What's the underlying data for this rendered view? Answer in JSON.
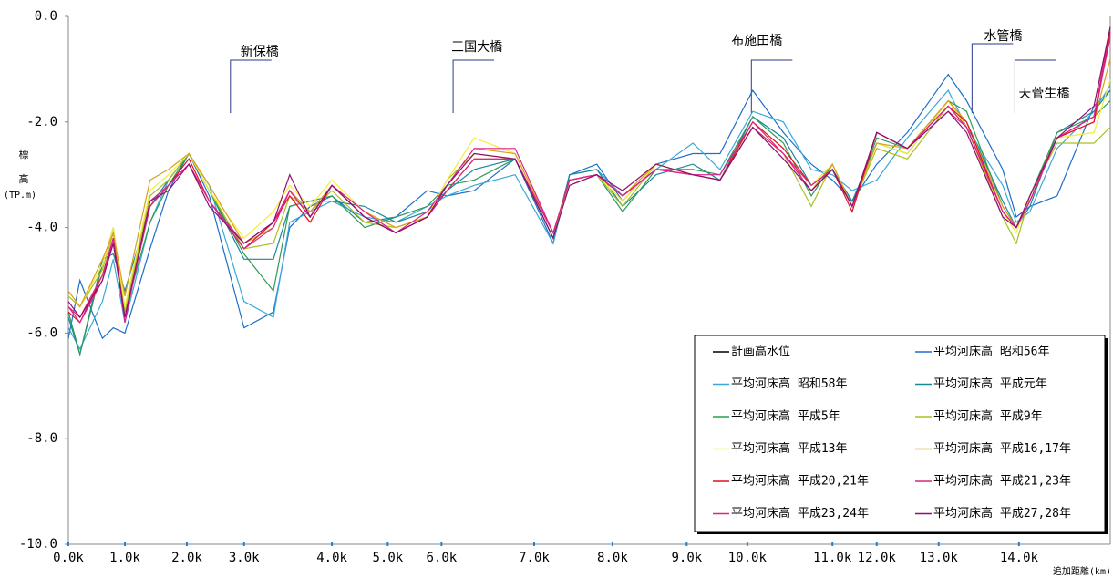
{
  "chart_data": {
    "type": "line",
    "y_label": [
      "標",
      "高",
      "(TP.m)"
    ],
    "x_label": "追加距離(km)",
    "x": [
      0,
      0.17,
      0.5,
      0.66,
      0.83,
      1.2,
      1.47,
      1.77,
      2.07,
      2.58,
      3.01,
      3.25,
      3.55,
      3.87,
      4.35,
      4.81,
      5.27,
      5.56,
      5.96,
      6.56,
      7.12,
      7.36,
      7.76,
      8.14,
      8.63,
      9.17,
      9.57,
      10.05,
      10.5,
      10.91,
      11.22,
      11.51,
      11.87,
      12.32,
      12.92,
      13.19,
      13.72,
      13.92,
      14.12,
      14.52,
      15.06,
      15.3
    ],
    "xlim": [
      0,
      15.3
    ],
    "xticks": [
      {
        "value": 0,
        "label": "0.0k"
      },
      {
        "value": 0.83,
        "label": "1.0k"
      },
      {
        "value": 1.74,
        "label": "2.0k"
      },
      {
        "value": 2.58,
        "label": "3.0k"
      },
      {
        "value": 3.87,
        "label": "4.0k"
      },
      {
        "value": 4.69,
        "label": "5.0k"
      },
      {
        "value": 5.48,
        "label": "6.0k"
      },
      {
        "value": 6.84,
        "label": "7.0k"
      },
      {
        "value": 7.99,
        "label": "8.0k"
      },
      {
        "value": 9.08,
        "label": "9.0k"
      },
      {
        "value": 9.97,
        "label": "10.0k"
      },
      {
        "value": 11.22,
        "label": "11.0k"
      },
      {
        "value": 11.87,
        "label": "12.0k"
      },
      {
        "value": 12.78,
        "label": "13.0k"
      },
      {
        "value": 13.96,
        "label": "14.0k"
      }
    ],
    "ylim": [
      -10,
      0
    ],
    "yticks": [
      {
        "value": 0,
        "label": "0.0"
      },
      {
        "value": -2,
        "label": "-2.0"
      },
      {
        "value": -4,
        "label": "-4.0"
      },
      {
        "value": -6,
        "label": "-6.0"
      },
      {
        "value": -8,
        "label": "-8.0"
      },
      {
        "value": -10,
        "label": "-10.0"
      }
    ],
    "annotations": [
      {
        "text": "新保橋",
        "x": 2.38
      },
      {
        "text": "三国大橋",
        "x": 5.65
      },
      {
        "text": "布施田橋",
        "x": 10.03
      },
      {
        "text": "水管橋",
        "x": 13.27
      },
      {
        "text": "天菅生橋",
        "x": 13.9
      }
    ],
    "series": [
      {
        "name": "計画高水位",
        "color": "#000000",
        "values": [
          null,
          null,
          null,
          null,
          null,
          null,
          null,
          null,
          null,
          null,
          null,
          null,
          null,
          null,
          null,
          null,
          null,
          null,
          null,
          null,
          null,
          null,
          null,
          null,
          null,
          null,
          null,
          null,
          null,
          null,
          null,
          null,
          null,
          null,
          null,
          null,
          null,
          null,
          null,
          null,
          null,
          null
        ]
      },
      {
        "name": "平均河床高 昭和56年",
        "color": "#1e6fc8",
        "values": [
          -6.1,
          -5.0,
          -6.1,
          -5.9,
          -6.0,
          -4.4,
          -3.3,
          -2.6,
          -3.4,
          -5.9,
          -5.6,
          -4.0,
          -3.6,
          -3.4,
          -3.9,
          -3.8,
          -3.3,
          -3.4,
          -3.3,
          -2.7,
          -4.3,
          -3.0,
          -2.8,
          -3.5,
          -2.8,
          -2.6,
          -2.6,
          -1.4,
          -2.2,
          -2.8,
          -3.1,
          -3.5,
          -2.8,
          -2.2,
          -1.1,
          -1.6,
          -2.9,
          -3.8,
          -3.6,
          -3.4,
          -1.7,
          -1.4
        ]
      },
      {
        "name": "平均河床高 昭和58年",
        "color": "#3aa8d8",
        "values": [
          -5.9,
          -6.3,
          -5.4,
          -4.6,
          -5.8,
          -3.9,
          -3.1,
          -2.6,
          -3.2,
          -5.4,
          -5.7,
          -3.9,
          -3.7,
          -3.5,
          -3.8,
          -3.9,
          -3.6,
          -3.4,
          -3.2,
          -3.0,
          -4.3,
          -3.0,
          -2.9,
          -3.4,
          -2.9,
          -2.4,
          -2.9,
          -1.8,
          -2.0,
          -2.9,
          -3.0,
          -3.3,
          -3.1,
          -2.3,
          -1.4,
          -2.1,
          -3.2,
          -3.9,
          -3.7,
          -2.5,
          -1.8,
          -1.3
        ]
      },
      {
        "name": "平均河床高 平成元年",
        "color": "#17879a",
        "values": [
          -5.7,
          -6.4,
          -4.6,
          -4.5,
          -5.2,
          -3.6,
          -3.1,
          -2.6,
          -3.3,
          -4.6,
          -4.6,
          -3.6,
          -3.5,
          -3.5,
          -3.6,
          -3.9,
          -3.7,
          -3.3,
          -2.9,
          -2.7,
          -4.2,
          -3.0,
          -2.9,
          -3.6,
          -3.0,
          -2.8,
          -3.1,
          -1.9,
          -2.3,
          -3.2,
          -2.9,
          -3.5,
          -2.4,
          -2.6,
          -1.6,
          -2.0,
          -3.5,
          -4.0,
          -3.6,
          -2.2,
          -1.8,
          -1.4
        ]
      },
      {
        "name": "平均河床高 平成5年",
        "color": "#2e9b55",
        "values": [
          -5.6,
          -6.4,
          -4.7,
          -4.0,
          -5.6,
          -3.9,
          -3.2,
          -2.6,
          -3.3,
          -4.5,
          -5.2,
          -3.6,
          -3.5,
          -3.4,
          -4.0,
          -3.8,
          -3.6,
          -3.2,
          -3.1,
          -2.7,
          -4.2,
          -3.1,
          -3.0,
          -3.7,
          -2.9,
          -2.9,
          -3.0,
          -1.9,
          -2.4,
          -3.4,
          -2.8,
          -3.6,
          -2.3,
          -2.5,
          -1.6,
          -1.8,
          -3.6,
          -4.0,
          -3.4,
          -2.2,
          -1.9,
          -1.6
        ]
      },
      {
        "name": "平均河床高 平成9年",
        "color": "#a8c020",
        "values": [
          -5.3,
          -5.5,
          -4.8,
          -4.1,
          -5.6,
          -3.4,
          -3.1,
          -2.6,
          -3.3,
          -4.4,
          -4.3,
          -3.4,
          -3.7,
          -3.3,
          -3.9,
          -4.0,
          -3.8,
          -3.1,
          -2.6,
          -2.7,
          -4.1,
          -3.2,
          -3.0,
          -3.6,
          -2.8,
          -3.0,
          -3.1,
          -2.1,
          -2.6,
          -3.6,
          -2.8,
          -3.6,
          -2.5,
          -2.7,
          -1.7,
          -2.1,
          -3.8,
          -4.3,
          -3.4,
          -2.4,
          -2.4,
          -2.1
        ]
      },
      {
        "name": "平均河床高 平成13年",
        "color": "#f2ee3a",
        "values": [
          -5.2,
          -5.5,
          -4.7,
          -4.0,
          -5.5,
          -3.3,
          -3.0,
          -2.6,
          -3.3,
          -4.2,
          -3.7,
          -3.2,
          -3.6,
          -3.1,
          -3.7,
          -4.0,
          -3.8,
          -3.1,
          -2.3,
          -2.6,
          -4.1,
          -3.1,
          -3.0,
          -3.5,
          -2.8,
          -3.0,
          -3.1,
          -2.0,
          -2.5,
          -3.2,
          -2.8,
          -3.6,
          -2.4,
          -2.6,
          -1.6,
          -2.1,
          -3.7,
          -4.1,
          -3.4,
          -2.3,
          -2.2,
          -1.2
        ]
      },
      {
        "name": "平均河床高 平成16,17年",
        "color": "#d8a020",
        "values": [
          -5.2,
          -5.5,
          -4.6,
          -4.1,
          -5.3,
          -3.1,
          -2.9,
          -2.6,
          -3.2,
          -4.3,
          -4.0,
          -3.3,
          -3.7,
          -3.2,
          -3.7,
          -4.0,
          -3.8,
          -3.2,
          -2.5,
          -2.6,
          -4.1,
          -3.1,
          -3.0,
          -3.4,
          -2.8,
          -3.0,
          -3.1,
          -2.1,
          -2.6,
          -3.3,
          -2.8,
          -3.6,
          -2.4,
          -2.5,
          -1.6,
          -2.0,
          -3.6,
          -4.0,
          -3.4,
          -2.3,
          -2.0,
          -0.8
        ]
      },
      {
        "name": "平均河床高 平成20,21年",
        "color": "#e01020",
        "values": [
          -5.6,
          -5.8,
          -4.9,
          -4.2,
          -5.7,
          -3.6,
          -3.2,
          -2.7,
          -3.5,
          -4.4,
          -3.9,
          -3.4,
          -3.9,
          -3.2,
          -3.8,
          -4.1,
          -3.8,
          -3.3,
          -2.7,
          -2.7,
          -4.1,
          -3.1,
          -3.0,
          -3.4,
          -2.9,
          -3.0,
          -3.1,
          -2.0,
          -2.5,
          -3.2,
          -2.9,
          -3.7,
          -2.2,
          -2.5,
          -1.7,
          -2.0,
          -3.7,
          -4.0,
          -3.5,
          -2.3,
          -2.0,
          -0.3
        ]
      },
      {
        "name": "平均河床高 平成21,23年",
        "color": "#d52a7a",
        "values": [
          -5.5,
          -5.7,
          -4.9,
          -4.3,
          -5.7,
          -3.6,
          -3.2,
          -2.8,
          -3.5,
          -4.4,
          -4.0,
          -3.3,
          -3.8,
          -3.2,
          -3.8,
          -4.1,
          -3.8,
          -3.3,
          -2.7,
          -2.7,
          -4.1,
          -3.1,
          -3.0,
          -3.4,
          -2.9,
          -3.0,
          -3.1,
          -2.1,
          -2.6,
          -3.2,
          -2.9,
          -3.6,
          -2.2,
          -2.5,
          -1.8,
          -2.1,
          -3.7,
          -4.0,
          -3.5,
          -2.3,
          -1.9,
          -0.4
        ]
      },
      {
        "name": "平均河床高 平成23,24年",
        "color": "#e0208e",
        "values": [
          -5.5,
          -5.8,
          -5.0,
          -4.2,
          -5.8,
          -3.5,
          -3.2,
          -2.8,
          -3.5,
          -4.3,
          -3.9,
          -3.3,
          -3.8,
          -3.2,
          -3.7,
          -4.1,
          -3.7,
          -3.2,
          -2.5,
          -2.5,
          -4.1,
          -3.1,
          -3.0,
          -3.4,
          -2.9,
          -3.0,
          -3.0,
          -2.0,
          -2.6,
          -3.3,
          -2.9,
          -3.6,
          -2.2,
          -2.5,
          -1.7,
          -2.1,
          -3.7,
          -4.0,
          -3.5,
          -2.3,
          -1.9,
          -0.2
        ]
      },
      {
        "name": "平均河床高 平成27,28年",
        "color": "#8c1070",
        "values": [
          -5.4,
          -5.7,
          -5.0,
          -4.3,
          -5.7,
          -3.5,
          -3.3,
          -2.8,
          -3.6,
          -4.3,
          -3.9,
          -3.0,
          -3.8,
          -3.2,
          -3.8,
          -4.1,
          -3.8,
          -3.2,
          -2.6,
          -2.7,
          -4.2,
          -3.2,
          -3.0,
          -3.3,
          -2.8,
          -3.0,
          -3.1,
          -2.1,
          -2.7,
          -3.3,
          -2.9,
          -3.6,
          -2.2,
          -2.5,
          -1.8,
          -2.2,
          -3.8,
          -4.0,
          -3.4,
          -2.3,
          -1.7,
          -0.2
        ]
      }
    ]
  }
}
